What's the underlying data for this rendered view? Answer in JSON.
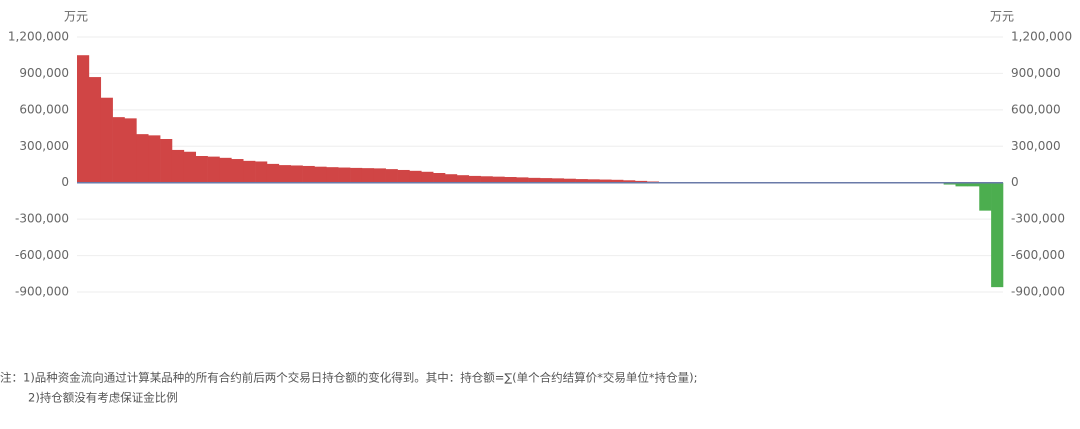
{
  "chart_data": {
    "type": "bar",
    "y_unit": "万元",
    "y2_unit": "万元",
    "categories": [
      null,
      null,
      null,
      null,
      null,
      null,
      null,
      null,
      null,
      null,
      null,
      null,
      null,
      null,
      null,
      null,
      null,
      null,
      null,
      null,
      null,
      null,
      null,
      null,
      null,
      null,
      null,
      null,
      null,
      null,
      null,
      null,
      null,
      null,
      null,
      null,
      null,
      null,
      null,
      null,
      null,
      null,
      null,
      null,
      null,
      null,
      null,
      null,
      null,
      null,
      null,
      null,
      null,
      null,
      null,
      null,
      null,
      null,
      null,
      null,
      null,
      null,
      null,
      null,
      null,
      null,
      null,
      null,
      null,
      null,
      null,
      null,
      null,
      null,
      null,
      null,
      null,
      null
    ],
    "values": [
      1050000,
      870000,
      700000,
      540000,
      530000,
      400000,
      390000,
      360000,
      270000,
      255000,
      220000,
      215000,
      205000,
      195000,
      180000,
      175000,
      155000,
      145000,
      142000,
      138000,
      132000,
      128000,
      125000,
      122000,
      120000,
      118000,
      112000,
      105000,
      98000,
      90000,
      80000,
      70000,
      62000,
      56000,
      53000,
      50000,
      47000,
      44000,
      40000,
      38000,
      36000,
      33000,
      30000,
      28000,
      26000,
      24000,
      20000,
      15000,
      10000,
      6000,
      3000,
      2000,
      1500,
      1200,
      1000,
      800,
      600,
      500,
      400,
      300,
      200,
      100,
      0,
      -100,
      -200,
      -400,
      -600,
      -800,
      -1000,
      -1500,
      -2000,
      -3000,
      -5000,
      -15000,
      -30000,
      -30000,
      -230000,
      -860000
    ],
    "positive_color": "#d04545",
    "negative_color": "#4cae4f",
    "zero_line_color": "#6a7aa8",
    "ylim": [
      -900000,
      1200000
    ],
    "yticks": [
      {
        "value": -900000,
        "label": "-900,000"
      },
      {
        "value": -600000,
        "label": "-600,000"
      },
      {
        "value": -300000,
        "label": "-300,000"
      },
      0,
      {
        "value": 300000,
        "label": "300,000"
      },
      {
        "value": 600000,
        "label": "600,000"
      },
      {
        "value": 900000,
        "label": "900,000"
      },
      {
        "value": 1200000,
        "label": "1,200,000"
      }
    ],
    "y2lim": [
      -900000,
      1200000
    ],
    "y2ticks": [
      {
        "value": -900000,
        "label": "-900,000"
      },
      {
        "value": -600000,
        "label": "-600,000"
      },
      {
        "value": -300000,
        "label": "-300,000"
      },
      0,
      {
        "value": 300000,
        "label": "300,000"
      },
      {
        "value": 600000,
        "label": "600,000"
      },
      {
        "value": 900000,
        "label": "900,000"
      },
      {
        "value": 1200000,
        "label": "1,200,000"
      }
    ],
    "grid": true,
    "notes": [
      "注：1)品种资金流向通过计算某品种的所有合约前后两个交易日持仓额的变化得到。其中：持仓额=∑(单个合约结算价*交易单位*持仓量);",
      "2)持仓额没有考虑保证金比例"
    ]
  }
}
